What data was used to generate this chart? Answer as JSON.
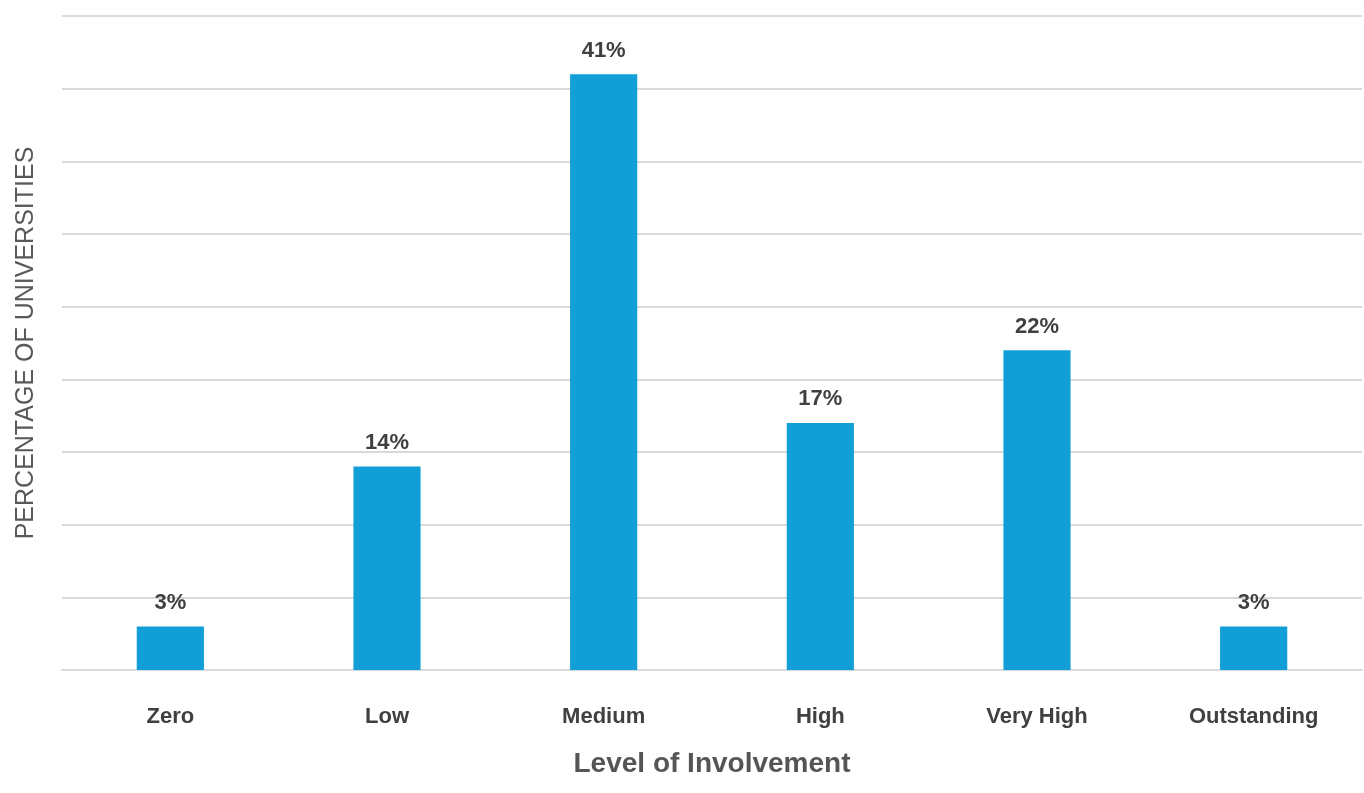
{
  "chart_data": {
    "type": "bar",
    "xlabel": "Level of Involvement",
    "ylabel": "PERCENTAGE OF UNIVERSITIES",
    "categories": [
      "Zero",
      "Low",
      "Medium",
      "High",
      "Very High",
      "Outstanding"
    ],
    "values": [
      3,
      14,
      41,
      17,
      22,
      3
    ],
    "value_labels": [
      "3%",
      "14%",
      "41%",
      "17%",
      "22%",
      "3%"
    ],
    "color": "#129fd7",
    "ylim": [
      0,
      45
    ],
    "yticks": [
      {
        "value": 0,
        "label": null
      },
      {
        "value": 5,
        "label": null
      },
      {
        "value": 10,
        "label": null
      },
      {
        "value": 15,
        "label": null
      },
      {
        "value": 20,
        "label": null
      },
      {
        "value": 25,
        "label": null
      },
      {
        "value": 30,
        "label": null
      },
      {
        "value": 35,
        "label": null
      },
      {
        "value": 40,
        "label": null
      },
      {
        "value": 45,
        "label": null
      }
    ],
    "grid": "y",
    "tick_labels": "x"
  }
}
